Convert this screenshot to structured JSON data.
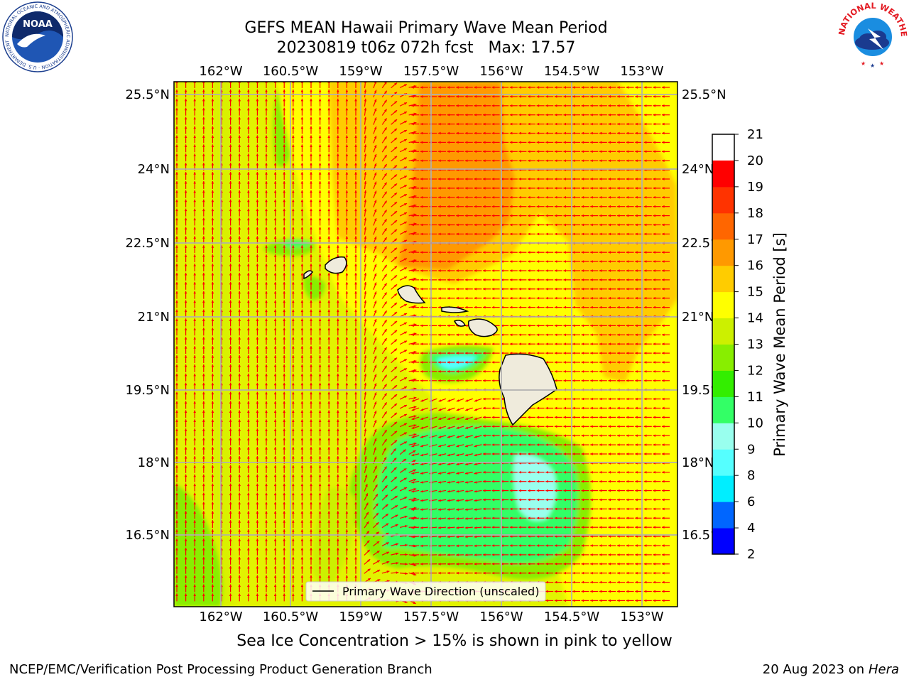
{
  "title": {
    "line1": "GEFS MEAN Hawaii Primary Wave Mean Period",
    "line2": "20230819 t06z 072h fcst   Max: 17.57"
  },
  "logos": {
    "noaa": {
      "text": "NOAA",
      "ring_text": "NATIONAL OCEANIC AND ATMOSPHERIC ADMINISTRATION · U.S. DEPARTMENT OF COMMERCE ·"
    },
    "nws": {
      "ring_text": "NATIONAL WEATHER SERVICE"
    }
  },
  "map": {
    "x_ticks": [
      "162°W",
      "160.5°W",
      "159°W",
      "157.5°W",
      "156°W",
      "154.5°W",
      "153°W"
    ],
    "y_ticks": [
      "25.5°N",
      "24°N",
      "22.5°N",
      "21°N",
      "19.5°N",
      "18°N",
      "16.5°N"
    ],
    "legend_label": "Primary Wave Direction (unscaled)",
    "arrow_color": "#ff0000",
    "land_color": "#efebdc"
  },
  "colorbar": {
    "label": "Primary Wave Mean Period [s]",
    "ticks": [
      "2",
      "4",
      "6",
      "8",
      "9",
      "10",
      "11",
      "12",
      "13",
      "14",
      "15",
      "16",
      "17",
      "18",
      "19",
      "20",
      "21"
    ],
    "colors": [
      "#0000ff",
      "#0066ff",
      "#00eeff",
      "#55ffff",
      "#99ffee",
      "#33ff66",
      "#33ee00",
      "#88ee00",
      "#ccf000",
      "#ffff00",
      "#ffcc00",
      "#ff9900",
      "#ff6600",
      "#ff3300",
      "#ff0000"
    ]
  },
  "caption": "Sea Ice Concentration > 15% is shown in pink to yellow",
  "footer": {
    "left": "NCEP/EMC/Verification Post Processing Product Generation Branch",
    "right_prefix": "20 Aug 2023 on",
    "right_host": "Hera"
  }
}
